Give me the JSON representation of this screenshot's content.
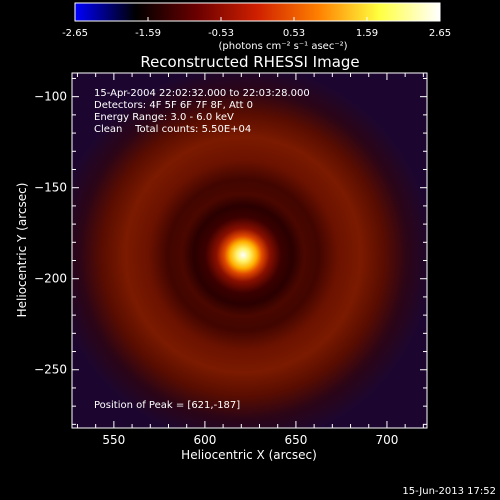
{
  "chart_data": {
    "type": "heatmap",
    "title": "Reconstructed RHESSI Image",
    "xlabel": "Heliocentric X (arcsec)",
    "ylabel": "Heliocentric Y (arcsec)",
    "xlim": [
      527,
      722
    ],
    "ylim": [
      -282,
      -87
    ],
    "x_ticks": [
      550,
      600,
      650,
      700
    ],
    "y_ticks": [
      -100,
      -150,
      -200,
      -250
    ],
    "colorbar": {
      "range": [
        -2.65,
        2.65
      ],
      "ticks": [
        "-2.65",
        "-1.59",
        "-0.53",
        "0.53",
        "1.59",
        "2.65"
      ],
      "label": "(photons cm⁻² s⁻¹ asec⁻²)",
      "colormap": [
        "#0000ff",
        "#000000",
        "#6a0000",
        "#d02000",
        "#ff8000",
        "#ffff40",
        "#ffffff"
      ]
    },
    "peak": {
      "x": 621,
      "y": -187,
      "value": 2.65
    },
    "annotations": [
      "15-Apr-2004 22:02:32.000 to 22:03:28.000",
      "Detectors: 4F 5F 6F 7F 8F, Att 0",
      "Energy Range: 3.0 - 6.0 keV",
      "Clean    Total counts: 5.50E+04"
    ],
    "peak_label": "Position of Peak = [621,-187]",
    "timestamp": "15-Jun-2013 17:52"
  }
}
